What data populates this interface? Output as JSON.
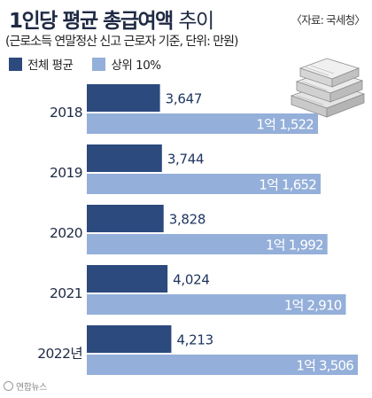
{
  "title": {
    "bold": "1인당 평균 총급여액",
    "light": "추이"
  },
  "source": "〈자료: 국세청〉",
  "subtitle": "(근로소득 연말정산 신고 근로자 기준, 단위: 만원)",
  "logo": "연합뉴스",
  "colors": {
    "dark_bar": "#2c4a7d",
    "light_bar": "#94afd9",
    "dark_text": "#1f3560",
    "light_text": "#ffffff"
  },
  "chart_data": {
    "type": "bar",
    "orientation": "horizontal",
    "categories": [
      "2018",
      "2019",
      "2020",
      "2021",
      "2022년"
    ],
    "series": [
      {
        "name": "전체 평균",
        "values": [
          3647,
          3744,
          3828,
          4024,
          4213
        ],
        "labels": [
          "3,647",
          "3,744",
          "3,828",
          "4,024",
          "4,213"
        ]
      },
      {
        "name": "상위 10%",
        "values": [
          11522,
          11652,
          11992,
          12910,
          13506
        ],
        "labels": [
          "1억 1,522",
          "1억 1,652",
          "1억 1,992",
          "1억 2,910",
          "1억 3,506"
        ]
      }
    ],
    "legend_position": "top-left"
  }
}
